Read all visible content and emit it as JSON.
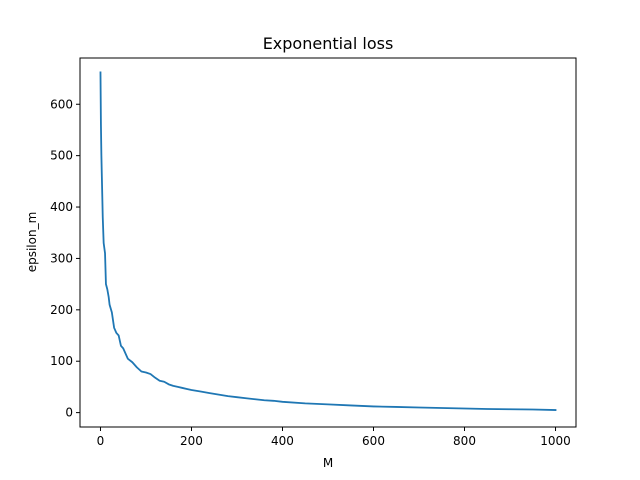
{
  "chart_data": {
    "type": "line",
    "title": "Exponential loss",
    "xlabel": "M",
    "ylabel": "epsilon_m",
    "xlim": [
      -45,
      1045
    ],
    "ylim": [
      -28,
      690
    ],
    "x_ticks": [
      0,
      200,
      400,
      600,
      800,
      1000
    ],
    "y_ticks": [
      0,
      100,
      200,
      300,
      400,
      500,
      600
    ],
    "grid": false,
    "legend": "none",
    "line_color": "#1f77b4",
    "series": [
      {
        "x": [
          0,
          1,
          2,
          3,
          4,
          5,
          7,
          10,
          12,
          15,
          18,
          20,
          25,
          30,
          35,
          40,
          45,
          50,
          55,
          60,
          70,
          80,
          90,
          100,
          110,
          120,
          130,
          140,
          150,
          160,
          170,
          180,
          190,
          200,
          220,
          240,
          260,
          280,
          300,
          320,
          340,
          360,
          380,
          400,
          450,
          500,
          550,
          600,
          650,
          700,
          750,
          800,
          850,
          900,
          950,
          1000
        ],
        "y": [
          662,
          560,
          500,
          460,
          420,
          380,
          330,
          310,
          250,
          240,
          225,
          210,
          195,
          165,
          155,
          150,
          130,
          125,
          115,
          105,
          98,
          88,
          80,
          78,
          75,
          68,
          62,
          60,
          55,
          52,
          50,
          48,
          46,
          44,
          41,
          38,
          35,
          32,
          30,
          28,
          26,
          24,
          23,
          21,
          18,
          16,
          14,
          12,
          11,
          10,
          9,
          8,
          7,
          6.5,
          6,
          5
        ]
      }
    ]
  }
}
